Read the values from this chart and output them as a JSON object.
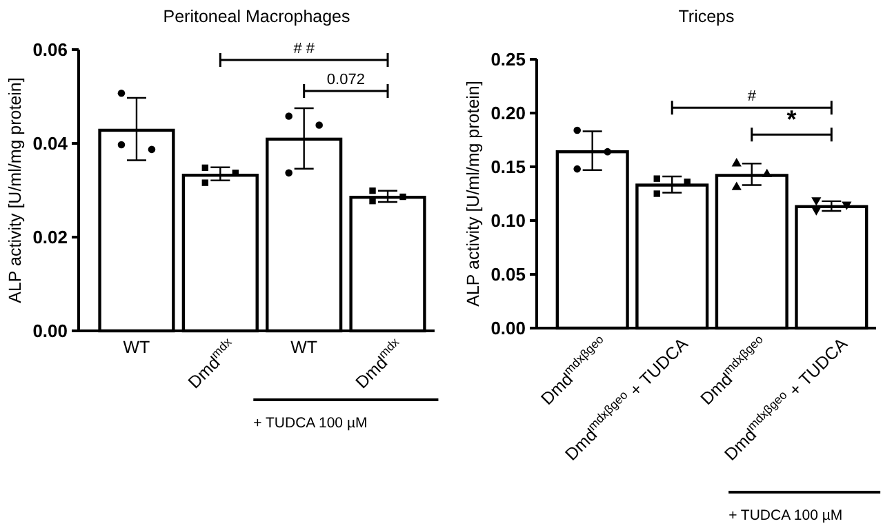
{
  "chart_data": [
    {
      "type": "bar",
      "title": "Peritoneal Macrophages",
      "ylabel": "ALP activity [U/ml/mg protein]",
      "categories": [
        "WT",
        "Dmd$^{mdx}$",
        "WT",
        "Dmd$^{mdx}$"
      ],
      "ylim": [
        0,
        0.06
      ],
      "yticks": [
        {
          "value": 0,
          "label": "0.00"
        },
        {
          "value": 0.02,
          "label": "0.02"
        },
        {
          "value": 0.04,
          "label": "0.04"
        },
        {
          "value": 0.06,
          "label": "0.06"
        }
      ],
      "grid": false,
      "annotations": [
        "# #",
        "0.072",
        "+ TUDCA 100 µM"
      ],
      "series": [
        {
          "type": "bar",
          "color": "#ffffff",
          "values": [
            0.0428,
            0.0332,
            0.0409,
            0.0285
          ],
          "errors": [
            [
              0.0364,
              0.0497
            ],
            [
              0.0321,
              0.0349
            ],
            [
              0.0346,
              0.0475
            ],
            [
              0.0275,
              0.0299
            ]
          ]
        },
        {
          "type": "scatter",
          "color": "#000000",
          "marker": "circle",
          "values": [
            0.0507,
            null,
            null,
            null
          ]
        },
        {
          "type": "scatter",
          "color": "#000000",
          "marker": "circle",
          "values": [
            0.0387,
            null,
            null,
            null
          ]
        },
        {
          "type": "scatter",
          "color": "#000000",
          "marker": "circle",
          "values": [
            0.0397,
            null,
            null,
            null
          ]
        },
        {
          "type": "scatter",
          "color": "#000000",
          "marker": "square",
          "values": [
            null,
            0.0348,
            null,
            null
          ]
        },
        {
          "type": "scatter",
          "color": "#000000",
          "marker": "square",
          "values": [
            null,
            0.0337,
            null,
            null
          ]
        },
        {
          "type": "scatter",
          "color": "#000000",
          "marker": "square",
          "values": [
            null,
            0.0316,
            null,
            null
          ]
        },
        {
          "type": "scatter",
          "color": "#000000",
          "marker": "circle",
          "values": [
            null,
            null,
            0.0458,
            null
          ]
        },
        {
          "type": "scatter",
          "color": "#000000",
          "marker": "circle",
          "values": [
            null,
            null,
            0.0439,
            null
          ]
        },
        {
          "type": "scatter",
          "color": "#000000",
          "marker": "circle",
          "values": [
            null,
            null,
            0.0337,
            null
          ]
        },
        {
          "type": "scatter",
          "color": "#000000",
          "marker": "square",
          "values": [
            null,
            null,
            null,
            0.0299
          ]
        },
        {
          "type": "scatter",
          "color": "#000000",
          "marker": "square",
          "values": [
            null,
            null,
            null,
            0.0286
          ]
        },
        {
          "type": "scatter",
          "color": "#000000",
          "marker": "square",
          "values": [
            null,
            null,
            null,
            0.0277
          ]
        }
      ]
    },
    {
      "type": "bar",
      "title": "Triceps",
      "ylabel": "ALP activity [U/ml/mg protein]",
      "categories": [
        "Dmd$^{mdxβgeo}$",
        "Dmd$^{mdxβgeo}$ + TUDCA",
        "Dmd$^{mdxβgeo}$",
        "Dmd$^{mdxβgeo}$ + TUDCA"
      ],
      "ylim": [
        0,
        0.25
      ],
      "yticks": [
        {
          "value": 0,
          "label": "0.00"
        },
        {
          "value": 0.05,
          "label": "0.05"
        },
        {
          "value": 0.1,
          "label": "0.10"
        },
        {
          "value": 0.15,
          "label": "0.15"
        },
        {
          "value": 0.2,
          "label": "0.20"
        },
        {
          "value": 0.25,
          "label": "0.25"
        }
      ],
      "grid": false,
      "annotations": [
        "#",
        "*",
        "+ TUDCA 100 µM"
      ],
      "series": [
        {
          "type": "bar",
          "color": "#ffffff",
          "values": [
            0.164,
            0.133,
            0.142,
            0.113
          ],
          "errors": [
            [
              0.147,
              0.183
            ],
            [
              0.126,
              0.141
            ],
            [
              0.133,
              0.153
            ],
            [
              0.109,
              0.118
            ]
          ]
        },
        {
          "type": "scatter",
          "color": "#000000",
          "marker": "circle",
          "values": [
            0.184,
            null,
            null,
            null
          ]
        },
        {
          "type": "scatter",
          "color": "#000000",
          "marker": "circle",
          "values": [
            0.164,
            null,
            null,
            null
          ]
        },
        {
          "type": "scatter",
          "color": "#000000",
          "marker": "circle",
          "values": [
            0.148,
            null,
            null,
            null
          ]
        },
        {
          "type": "scatter",
          "color": "#000000",
          "marker": "square",
          "values": [
            null,
            0.139,
            null,
            null
          ]
        },
        {
          "type": "scatter",
          "color": "#000000",
          "marker": "square",
          "values": [
            null,
            0.136,
            null,
            null
          ]
        },
        {
          "type": "scatter",
          "color": "#000000",
          "marker": "square",
          "values": [
            null,
            0.125,
            null,
            null
          ]
        },
        {
          "type": "scatter",
          "color": "#000000",
          "marker": "triangle",
          "values": [
            null,
            null,
            0.153,
            null
          ]
        },
        {
          "type": "scatter",
          "color": "#000000",
          "marker": "triangle",
          "values": [
            null,
            null,
            0.143,
            null
          ]
        },
        {
          "type": "scatter",
          "color": "#000000",
          "marker": "triangle",
          "values": [
            null,
            null,
            0.131,
            null
          ]
        },
        {
          "type": "scatter",
          "color": "#000000",
          "marker": "triangle-down",
          "values": [
            null,
            null,
            null,
            0.119
          ]
        },
        {
          "type": "scatter",
          "color": "#000000",
          "marker": "triangle-down",
          "values": [
            null,
            null,
            null,
            0.115
          ]
        },
        {
          "type": "scatter",
          "color": "#000000",
          "marker": "triangle-down",
          "values": [
            null,
            null,
            null,
            0.11
          ]
        }
      ]
    }
  ]
}
